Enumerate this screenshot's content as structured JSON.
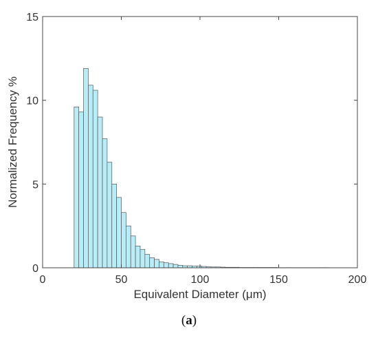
{
  "chart_data": {
    "type": "bar",
    "title": "",
    "xlabel": "Equivalent Diameter (μm)",
    "ylabel": "Normalized  Frequency %",
    "xlim": [
      0,
      200
    ],
    "ylim": [
      0,
      15
    ],
    "xticks": [
      0,
      50,
      100,
      150,
      200
    ],
    "yticks": [
      0,
      5,
      10,
      15
    ],
    "grid": false,
    "bin_width": 3,
    "bar_color": "#b8ecf7",
    "edge_color": "#555555",
    "bins_start": [
      20,
      23,
      26,
      29,
      32,
      35,
      38,
      41,
      44,
      47,
      50,
      53,
      56,
      59,
      62,
      65,
      68,
      71,
      74,
      77,
      80,
      83,
      86,
      89,
      92,
      95,
      98,
      101,
      104,
      107,
      110,
      113,
      116,
      119,
      122,
      125,
      128,
      131,
      134,
      137,
      140,
      143,
      146,
      149,
      152,
      155,
      158,
      161,
      164,
      167,
      170,
      173,
      176,
      179,
      182
    ],
    "values": [
      9.6,
      9.3,
      11.9,
      10.9,
      10.6,
      9.0,
      7.7,
      6.3,
      5.0,
      4.2,
      3.3,
      2.5,
      1.9,
      1.3,
      1.1,
      0.8,
      0.6,
      0.5,
      0.35,
      0.3,
      0.25,
      0.2,
      0.15,
      0.12,
      0.12,
      0.1,
      0.1,
      0.08,
      0.06,
      0.05,
      0.05,
      0.04,
      0.03,
      0.03,
      0.03,
      0.02,
      0.02,
      0.02,
      0.02,
      0.02,
      0.02,
      0.02,
      0.02,
      0.01,
      0.01,
      0.01,
      0.01,
      0.01,
      0.01,
      0.01,
      0.01,
      0.01,
      0.01,
      0.01,
      0.0
    ]
  },
  "caption": {
    "open": "(",
    "letter": "a",
    "close": ")"
  }
}
